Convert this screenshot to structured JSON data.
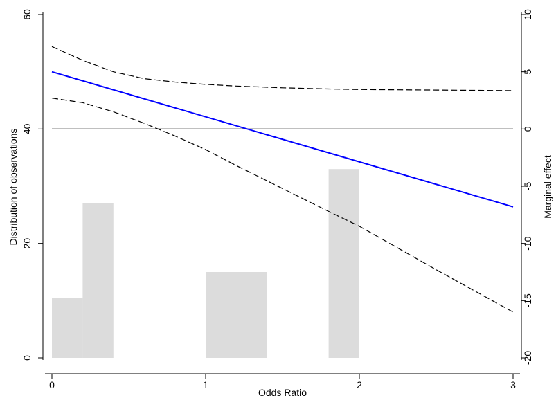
{
  "chart_data": {
    "type": "bar",
    "title": "",
    "xlabel": "Odds Ratio",
    "ylabel_left": "Distribution of observations",
    "ylabel_right": "Marginal effect",
    "xlim": [
      0,
      3
    ],
    "ylim_left": [
      0,
      60
    ],
    "ylim_right": [
      -20,
      10
    ],
    "x_ticks": [
      "0",
      "1",
      "2",
      "3"
    ],
    "y_left_ticks": [
      "0",
      "20",
      "40",
      "60"
    ],
    "y_right_ticks": [
      "-20",
      "-15",
      "-10",
      "-5",
      "0",
      "5",
      "10"
    ],
    "histogram": [
      {
        "x0": 0.0,
        "x1": 0.2,
        "count": 10.5
      },
      {
        "x0": 0.2,
        "x1": 0.4,
        "count": 27.0
      },
      {
        "x0": 1.0,
        "x1": 1.4,
        "count": 15.0
      },
      {
        "x0": 1.8,
        "x1": 2.0,
        "count": 33.0
      }
    ],
    "marginal_effect": {
      "name": "",
      "x": [
        0,
        3
      ],
      "y": [
        5,
        -6.8
      ],
      "color": "#0000ff"
    },
    "ci_upper": {
      "x": [
        0,
        0.2,
        0.4,
        0.6,
        0.8,
        1.0,
        1.2,
        1.5,
        1.8,
        2.0,
        2.5,
        3.0
      ],
      "y": [
        7.2,
        6.0,
        5.0,
        4.4,
        4.1,
        3.9,
        3.75,
        3.6,
        3.5,
        3.45,
        3.4,
        3.35
      ]
    },
    "ci_lower": {
      "x": [
        0,
        0.2,
        0.4,
        0.6,
        0.8,
        1.0,
        1.2,
        1.5,
        1.8,
        2.0,
        2.5,
        3.0
      ],
      "y": [
        2.7,
        2.3,
        1.5,
        0.5,
        -0.6,
        -1.8,
        -3.2,
        -5.2,
        -7.2,
        -8.5,
        -12.3,
        -16.0
      ]
    },
    "reference_line_y": 0,
    "grid": false,
    "bar_color": "#dcdcdc"
  }
}
